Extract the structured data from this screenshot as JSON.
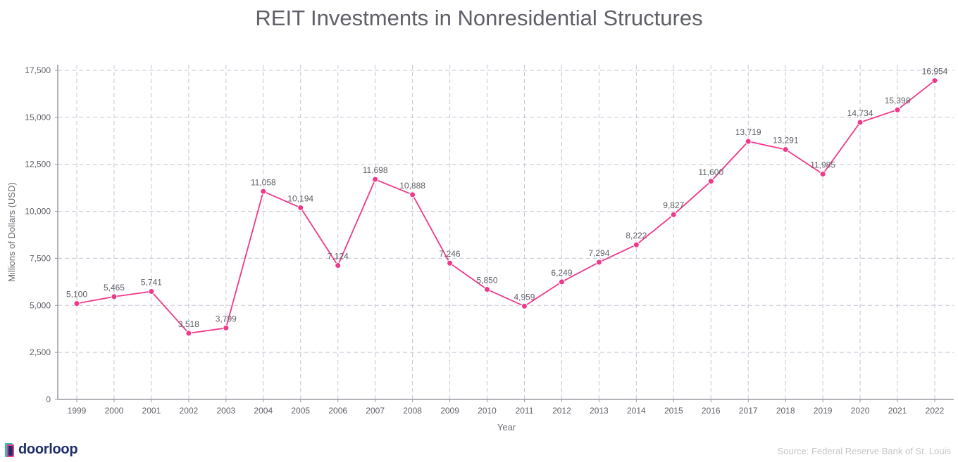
{
  "chart_data": {
    "type": "line",
    "title": "REIT Investments in Nonresidential Structures",
    "xlabel": "Year",
    "ylabel": "Millions of Dollars (USD)",
    "ylim": [
      0,
      17500
    ],
    "yticks": [
      "0",
      "2,500",
      "5,000",
      "7,500",
      "10,000",
      "12,500",
      "15,000",
      "17,500"
    ],
    "grid": true,
    "categories": [
      "1999",
      "2000",
      "2001",
      "2002",
      "2003",
      "2004",
      "2005",
      "2006",
      "2007",
      "2008",
      "2009",
      "2010",
      "2011",
      "2012",
      "2013",
      "2014",
      "2015",
      "2016",
      "2017",
      "2018",
      "2019",
      "2020",
      "2021",
      "2022"
    ],
    "values": [
      5100,
      5465,
      5741,
      3518,
      3799,
      11058,
      10194,
      7124,
      11698,
      10888,
      7246,
      5850,
      4959,
      6249,
      7294,
      8222,
      9827,
      11600,
      13719,
      13291,
      11985,
      14734,
      15398,
      16954
    ],
    "data_labels": [
      "5,100",
      "5,465",
      "5,741",
      "3,518",
      "3,799",
      "11,058",
      "10,194",
      "7,124",
      "11,698",
      "10,888",
      "7,246",
      "5,850",
      "4,959",
      "6,249",
      "7,294",
      "8,222",
      "9,827",
      "11,600",
      "13,719",
      "13,291",
      "11,985",
      "14,734",
      "15,398",
      "16,954"
    ],
    "line_color": "#f0388a"
  },
  "footer": {
    "source": "Source: Federal Reserve Bank of St. Louis",
    "logo_text": "doorloop"
  }
}
